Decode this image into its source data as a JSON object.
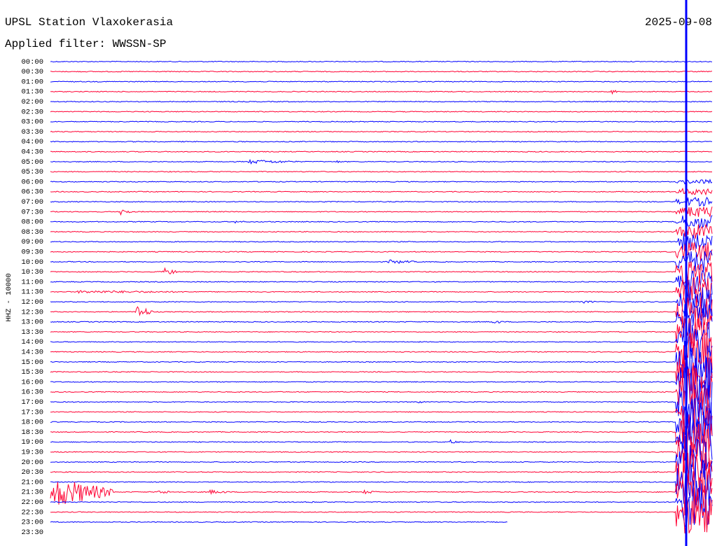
{
  "header": {
    "title": "UPSL Station Vlaxokerasia",
    "filter": "Applied filter: WWSSN-SP",
    "date": "2025-09-08"
  },
  "axis_label": "HHZ - 10000",
  "times": [
    "00:00",
    "00:30",
    "01:00",
    "01:30",
    "02:00",
    "02:30",
    "03:00",
    "03:30",
    "04:00",
    "04:30",
    "05:00",
    "05:30",
    "06:00",
    "06:30",
    "07:00",
    "07:30",
    "08:00",
    "08:30",
    "09:00",
    "09:30",
    "10:00",
    "10:30",
    "11:00",
    "11:30",
    "12:00",
    "12:30",
    "13:00",
    "13:30",
    "14:00",
    "14:30",
    "15:00",
    "15:30",
    "16:00",
    "16:30",
    "17:00",
    "17:30",
    "18:00",
    "18:30",
    "19:00",
    "19:30",
    "20:00",
    "20:30",
    "21:00",
    "21:30",
    "22:00",
    "22:30",
    "23:00",
    "23:30"
  ]
}
